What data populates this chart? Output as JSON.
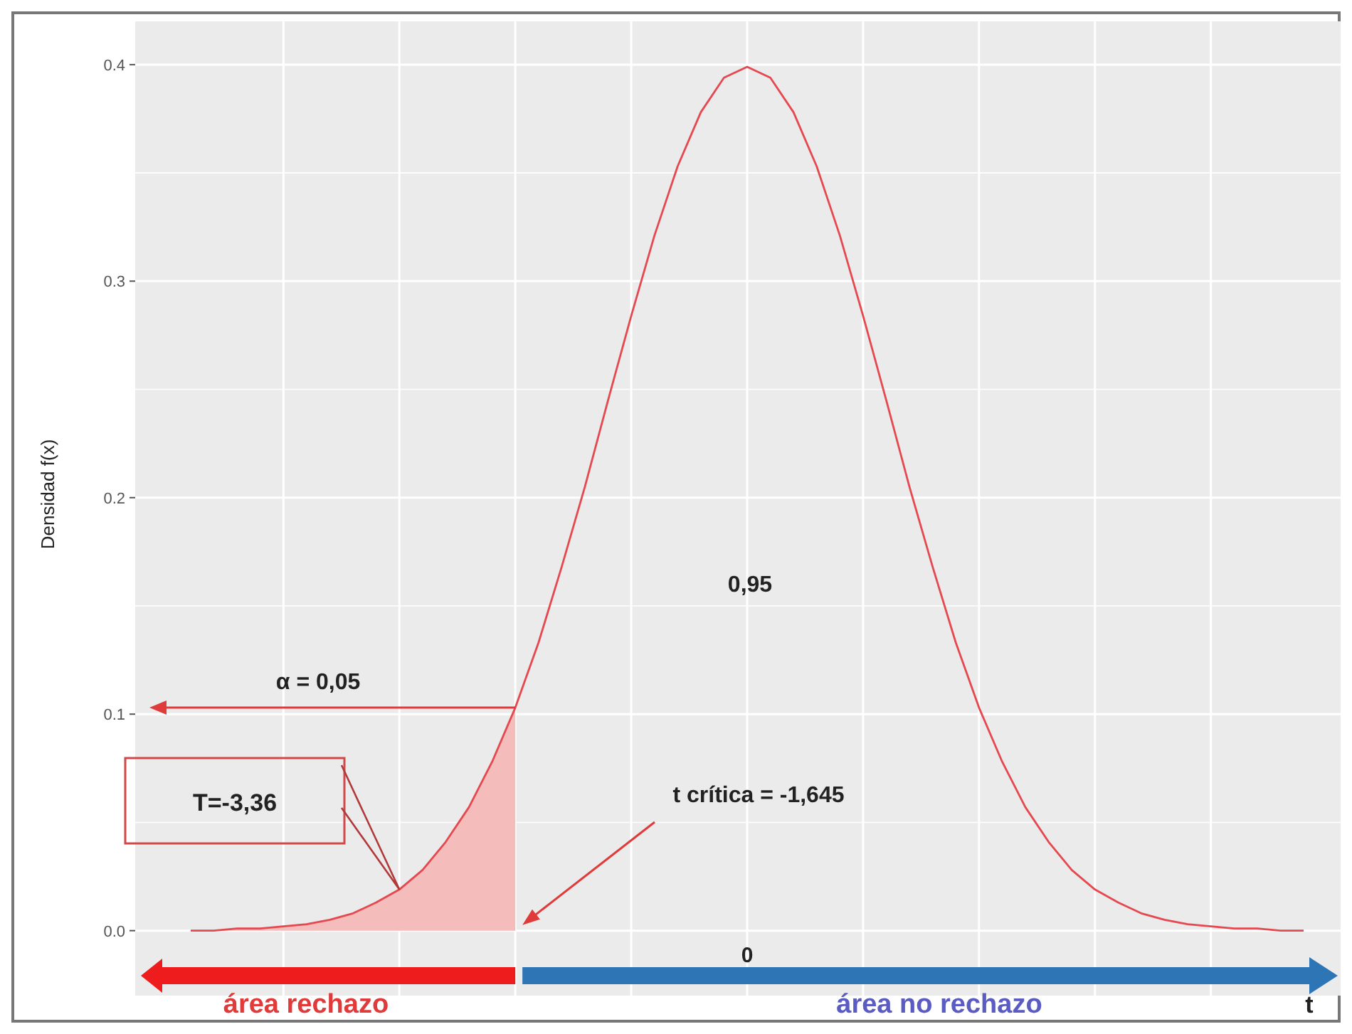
{
  "chart_data": {
    "type": "line",
    "ylabel": "Densidad f(x)",
    "ylim": [
      -0.03,
      0.42
    ],
    "categories": [
      null,
      null,
      null,
      null,
      null,
      null,
      null,
      null,
      null,
      null,
      null,
      null,
      null,
      null,
      null,
      null,
      null,
      null,
      null,
      null,
      null,
      null,
      null,
      null,
      null,
      null,
      null,
      null,
      null,
      null,
      null,
      null,
      null,
      null,
      null,
      null,
      null,
      null,
      null,
      null,
      null,
      null,
      null,
      null,
      null,
      null,
      null,
      null,
      null
    ],
    "yticks": [
      {
        "value": 0,
        "label": "0.0"
      },
      {
        "value": 0.05,
        "label": null
      },
      {
        "value": 0.1,
        "label": "0.1"
      },
      {
        "value": 0.15,
        "label": null
      },
      {
        "value": 0.2,
        "label": "0.2"
      },
      {
        "value": 0.25,
        "label": null
      },
      {
        "value": 0.3,
        "label": "0.3"
      },
      {
        "value": 0.35,
        "label": null
      },
      {
        "value": 0.4,
        "label": "0.4"
      }
    ],
    "grid": true,
    "series": [
      {
        "type": "area",
        "color": "#f5bcbc",
        "values": [
          0.0,
          0.0,
          0.001,
          0.001,
          0.002,
          0.003,
          0.005,
          0.008,
          0.013,
          0.019,
          0.028,
          0.041,
          0.057,
          0.078,
          0.103,
          null,
          null,
          null,
          null,
          null,
          null,
          null,
          null,
          null,
          null,
          null,
          null,
          null,
          null,
          null,
          null,
          null,
          null,
          null,
          null,
          null,
          null,
          null,
          null,
          null,
          null,
          null,
          null,
          null,
          null,
          null,
          null,
          null,
          null
        ]
      },
      {
        "color": "#e5484f",
        "values": [
          0.0,
          0.0,
          0.001,
          0.001,
          0.002,
          0.003,
          0.005,
          0.008,
          0.013,
          0.019,
          0.028,
          0.041,
          0.057,
          0.078,
          0.103,
          0.133,
          0.168,
          0.205,
          0.245,
          0.284,
          0.321,
          0.353,
          0.378,
          0.394,
          0.399,
          0.394,
          0.378,
          0.353,
          0.321,
          0.284,
          0.245,
          0.205,
          0.168,
          0.133,
          0.103,
          0.078,
          0.057,
          0.041,
          0.028,
          0.019,
          0.013,
          0.008,
          0.005,
          0.003,
          0.002,
          0.001,
          0.001,
          0.0,
          0.0
        ]
      }
    ],
    "annotations": [
      "α = 0,05",
      "T=-3,36",
      "t crítica = -1,645",
      "0,95",
      "0",
      "área rechazo",
      "área no rechazo",
      "t"
    ]
  }
}
